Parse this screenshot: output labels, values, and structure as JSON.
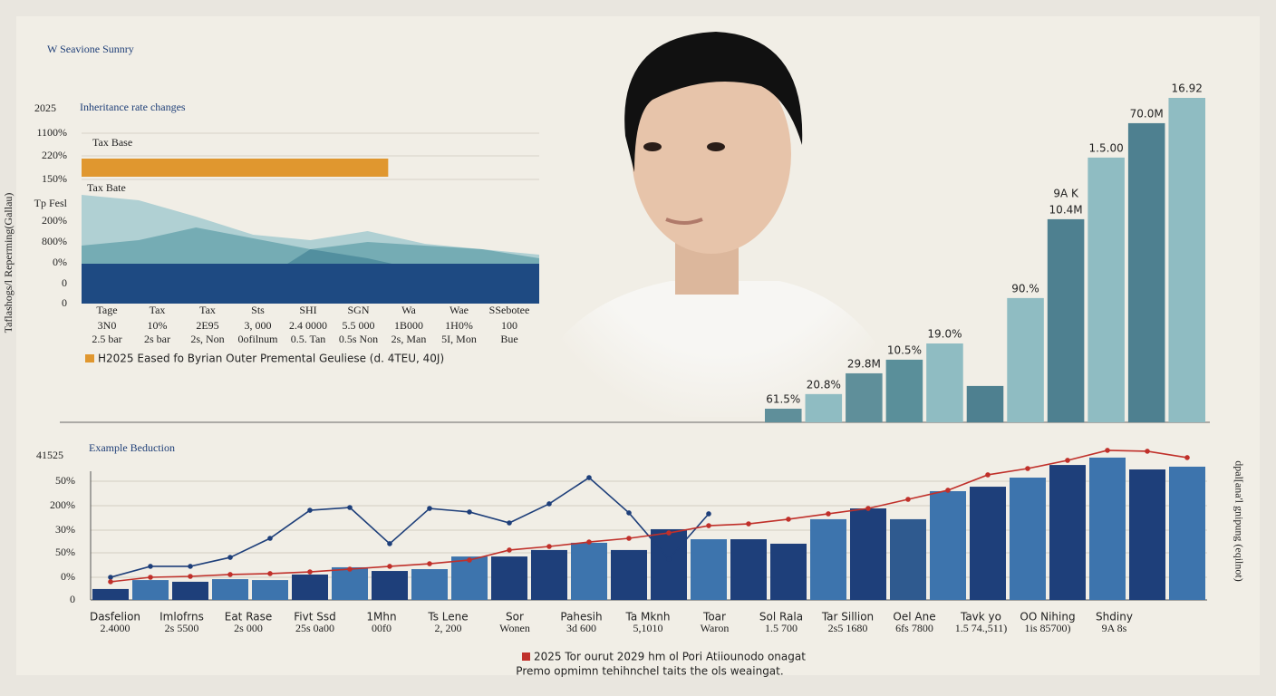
{
  "title": "W Seavione Sunnry",
  "side_labels": {
    "left": "Taflashogs/l Reperming(Gallau)",
    "right": "dpal[ana'l gnipung (eqilnot)"
  },
  "chart_data": [
    {
      "type": "area",
      "year": "2025",
      "title": "Inheritance rate changes",
      "y_labels": [
        "1100%",
        "220%",
        "150%",
        "Tp Fesl",
        "200%",
        "800%",
        "0%",
        "0",
        "0"
      ],
      "bar_label": "Tax Base",
      "bar_value": 67,
      "bar_color": "#e0972f",
      "xlim": [
        0,
        100
      ],
      "ylim": [
        0,
        100
      ],
      "categories": [
        "Tage",
        "Tax",
        "Tax",
        "Sts",
        "SHI",
        "SGN",
        "Wa",
        "Wae",
        "SSebotee"
      ],
      "row2": [
        "3N0",
        "10%",
        "2E95",
        "3, 000",
        "2.4 0000",
        "5.5 000",
        "1B000",
        "1H0%",
        "100"
      ],
      "row3": [
        "2.5 bar",
        "2s bar",
        "2s, Non",
        "0ofilnum",
        "0.5. Tan",
        "0.5s Non",
        "2s, Man",
        "5I, Mon",
        "Bue"
      ],
      "note": "H2025 Eased fo Byrian Outer Premental Geuliese (d. 4TEU, 40J)",
      "series": [
        {
          "name": "Tax Bate",
          "color": "#a9ccd0",
          "values": [
            60,
            57,
            48,
            38,
            35,
            40,
            33,
            30,
            27
          ]
        },
        {
          "color": "#6fa7b0",
          "values": [
            32,
            35,
            42,
            36,
            30,
            34,
            32,
            30,
            25
          ]
        },
        {
          "color": "#4f8c9c",
          "values": [
            0,
            0,
            0,
            10,
            30,
            25,
            18,
            20,
            20
          ]
        },
        {
          "color": "#1e4a82",
          "values": [
            22,
            22,
            22,
            22,
            22,
            22,
            22,
            22,
            22
          ]
        }
      ]
    },
    {
      "type": "bar",
      "ylim": [
        0,
        100
      ],
      "values": [
        4.2,
        8.7,
        15.1,
        19.3,
        24.3,
        11.2,
        38.3,
        62.6,
        81.6,
        92.2,
        100
      ],
      "colors": [
        "#5f8f9a",
        "#8fbcc2",
        "#5f8f9a",
        "#5a8f9a",
        "#8fbcc2",
        "#4e8090",
        "#8fbcc2",
        "#4e8090",
        "#8fbcc2",
        "#4e8090",
        "#8fbcc2"
      ],
      "annotations": [
        "61.5%",
        "20.8%",
        "29.8M",
        "10.5%",
        "19.0%",
        null,
        "90.%",
        "10.4M",
        "1.5.00",
        "70.0M",
        "16.92"
      ],
      "extra_annotation": "9A K"
    },
    {
      "type": "combo",
      "year": "41525",
      "title": "Example Beduction",
      "ylim": [
        0,
        100
      ],
      "y_labels": [
        "50%",
        "200%",
        "30%",
        "50%",
        "0%",
        "0"
      ],
      "series": [
        {
          "type": "bar",
          "colors": [
            "#1e3f7a",
            "#3d74ad",
            "#1e3f7a",
            "#3d74ad",
            "#3d74ad",
            "#1e3f7a",
            "#3d74ad",
            "#1e3f7a",
            "#3d74ad",
            "#3d74ad",
            "#1e3f7a",
            "#1e3f7a",
            "#3d74ad",
            "#1e3f7a",
            "#1e3f7a",
            "#3d74ad",
            "#1e3f7a",
            "#1e3f7a",
            "#3d74ad",
            "#1e3f7a",
            "#2f5a8f",
            "#3d74ad",
            "#1e3f7a",
            "#3d74ad",
            "#1e3f7a",
            "#3d74ad",
            "#1e3f7a",
            "#3d74ad"
          ],
          "values": [
            7.1,
            12.9,
            11.8,
            13.5,
            12.9,
            16.5,
            21.2,
            18.8,
            20,
            28.2,
            28.2,
            32.4,
            37.1,
            32.4,
            45.9,
            39.4,
            39.4,
            36.5,
            52.4,
            59.4,
            52.4,
            70.6,
            73.5,
            79.4,
            87.6,
            92.4,
            84.7,
            86.5
          ]
        },
        {
          "type": "line",
          "color": "#1e3f7a",
          "values": [
            14.7,
            21.8,
            21.8,
            27.6,
            40,
            58.2,
            60,
            36.5,
            59.4,
            57.1,
            50,
            62.4,
            79.4,
            56.5,
            26.5,
            55.9,
            null,
            null,
            null,
            null,
            null,
            null,
            null,
            null,
            null,
            null,
            null,
            null
          ]
        },
        {
          "type": "line",
          "color": "#c0302a",
          "values": [
            11.8,
            14.7,
            15.3,
            16.5,
            17.1,
            18.2,
            20,
            21.8,
            23.5,
            25.9,
            32.4,
            34.7,
            37.6,
            40,
            43.5,
            48.2,
            49.4,
            52.4,
            55.9,
            59.4,
            65.3,
            71.2,
            81.2,
            85.3,
            90.6,
            97.1,
            96.5,
            92.4
          ]
        }
      ],
      "groups": [
        [
          "Dasfelion",
          "2.4000"
        ],
        [
          "Imlofrns",
          "2s 5500"
        ],
        [
          "Eat Rase",
          "2s 000"
        ],
        [
          "Fivt Ssd",
          "25s 0a00"
        ],
        [
          "1Mhn",
          "00f0"
        ],
        [
          "Ts Lene",
          "2, 200"
        ],
        [
          "Sor",
          "Wonen"
        ],
        [
          "Pahesih",
          "3d 600"
        ],
        [
          "Ta Mknh",
          "5,1010"
        ],
        [
          "Toar",
          "Waron"
        ],
        [
          "Sol Rala",
          "1.5 700"
        ],
        [
          "Tar Sillion",
          "2s5 1680"
        ],
        [
          "Oel Ane",
          "6fs 7800"
        ],
        [
          "Tavk yo",
          "1.5 74.,511)"
        ],
        [
          "OO Nihing",
          "1is 85700)"
        ],
        [
          "Shdiny",
          "9A 8s"
        ]
      ],
      "legend": "2025 Tor ourut 2029 hm ol Pori Atiiounodo onagat",
      "legend_color": "#c0302a",
      "footnote": "Premo opmimn tehihnchel taits the ols weaingat."
    }
  ]
}
